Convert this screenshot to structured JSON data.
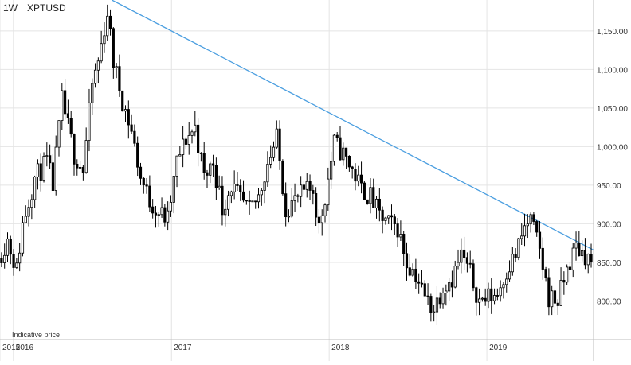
{
  "header": {
    "interval": "1W",
    "symbol": "XPTUSD"
  },
  "note": "Indicative price",
  "chart_data": {
    "type": "candlestick",
    "interval": "1W",
    "symbol": "XPTUSD",
    "ylim": [
      750,
      1190
    ],
    "y_ticks": [
      {
        "value": 800,
        "label": "800.00"
      },
      {
        "value": 850,
        "label": "850.00"
      },
      {
        "value": 900,
        "label": "900.00"
      },
      {
        "value": 950,
        "label": "950.00"
      },
      {
        "value": 1000,
        "label": "1,000.00"
      },
      {
        "value": 1050,
        "label": "1,050.00"
      },
      {
        "value": 1100,
        "label": "1,100.00"
      },
      {
        "value": 1150,
        "label": "1,150.00"
      }
    ],
    "x_range": [
      "2015-12-01",
      "2019-09-05"
    ],
    "x_ticks": [
      {
        "date": "2015-12-01",
        "label": "2015"
      },
      {
        "date": "2016-01-01",
        "label": "2016"
      },
      {
        "date": "2017-01-01",
        "label": "2017"
      },
      {
        "date": "2018-01-01",
        "label": "2018"
      },
      {
        "date": "2019-01-01",
        "label": "2019"
      }
    ],
    "grid": true,
    "price_path": [
      [
        "2015-12-01",
        855
      ],
      [
        "2015-12-22",
        880
      ],
      [
        "2016-01-12",
        840
      ],
      [
        "2016-01-26",
        900
      ],
      [
        "2016-02-23",
        960
      ],
      [
        "2016-03-22",
        980
      ],
      [
        "2016-04-05",
        950
      ],
      [
        "2016-04-26",
        1060
      ],
      [
        "2016-05-24",
        990
      ],
      [
        "2016-06-14",
        970
      ],
      [
        "2016-07-05",
        1080
      ],
      [
        "2016-07-19",
        1110
      ],
      [
        "2016-08-09",
        1175
      ],
      [
        "2016-08-23",
        1110
      ],
      [
        "2016-09-13",
        1060
      ],
      [
        "2016-10-04",
        1020
      ],
      [
        "2016-10-25",
        960
      ],
      [
        "2016-11-15",
        930
      ],
      [
        "2016-12-06",
        915
      ],
      [
        "2016-12-27",
        905
      ],
      [
        "2017-01-17",
        980
      ],
      [
        "2017-02-07",
        1010
      ],
      [
        "2017-02-28",
        1025
      ],
      [
        "2017-03-21",
        960
      ],
      [
        "2017-04-11",
        980
      ],
      [
        "2017-05-02",
        920
      ],
      [
        "2017-05-23",
        950
      ],
      [
        "2017-06-13",
        930
      ],
      [
        "2017-07-04",
        915
      ],
      [
        "2017-07-25",
        935
      ],
      [
        "2017-08-15",
        980
      ],
      [
        "2017-09-05",
        1010
      ],
      [
        "2017-09-26",
        920
      ],
      [
        "2017-10-17",
        930
      ],
      [
        "2017-11-07",
        940
      ],
      [
        "2017-11-28",
        945
      ],
      [
        "2017-12-12",
        895
      ],
      [
        "2017-12-26",
        935
      ],
      [
        "2018-01-16",
        1005
      ],
      [
        "2018-02-06",
        990
      ],
      [
        "2018-02-27",
        970
      ],
      [
        "2018-03-20",
        945
      ],
      [
        "2018-04-10",
        935
      ],
      [
        "2018-05-01",
        910
      ],
      [
        "2018-05-22",
        900
      ],
      [
        "2018-06-12",
        895
      ],
      [
        "2018-07-03",
        850
      ],
      [
        "2018-07-24",
        835
      ],
      [
        "2018-08-14",
        805
      ],
      [
        "2018-09-04",
        790
      ],
      [
        "2018-09-25",
        820
      ],
      [
        "2018-10-16",
        830
      ],
      [
        "2018-11-06",
        860
      ],
      [
        "2018-11-27",
        835
      ],
      [
        "2018-12-18",
        800
      ],
      [
        "2019-01-08",
        805
      ],
      [
        "2019-01-29",
        810
      ],
      [
        "2019-02-19",
        840
      ],
      [
        "2019-03-12",
        860
      ],
      [
        "2019-04-02",
        895
      ],
      [
        "2019-04-16",
        905
      ],
      [
        "2019-05-07",
        865
      ],
      [
        "2019-05-28",
        805
      ],
      [
        "2019-06-18",
        800
      ],
      [
        "2019-07-09",
        840
      ],
      [
        "2019-07-30",
        870
      ],
      [
        "2019-08-20",
        860
      ],
      [
        "2019-09-05",
        850
      ]
    ],
    "trendline": {
      "start": [
        "2016-08-16",
        1190
      ],
      "end": [
        "2019-09-05",
        866
      ],
      "color": "#4a9ee0"
    },
    "colors": {
      "up": "#ffffff",
      "down": "#000000",
      "wick": "#000000",
      "grid": "#e4e4e4",
      "axis": "#bdbdbd"
    }
  }
}
